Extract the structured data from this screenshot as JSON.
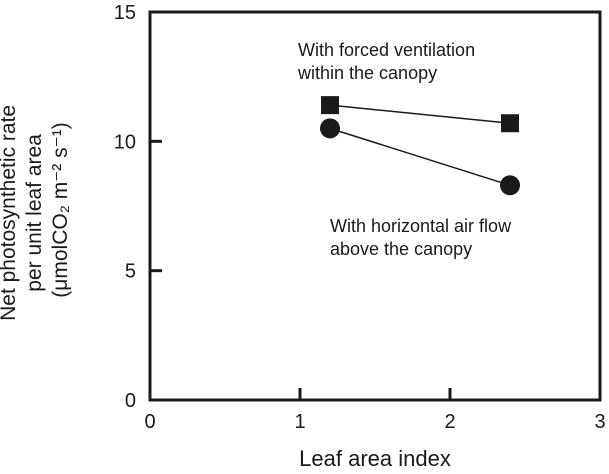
{
  "chart_data": {
    "type": "line",
    "xlabel": "Leaf area index",
    "ylabel_lines": [
      "Net photosynthetic rate",
      "per unit leaf area",
      "(μmolCO₂ m⁻² s⁻¹)"
    ],
    "xlim": [
      0,
      3
    ],
    "ylim": [
      0,
      15
    ],
    "xticks": [
      "0",
      "1",
      "2",
      "3"
    ],
    "yticks": [
      "0",
      "5",
      "10",
      "15"
    ],
    "grid": false,
    "series": [
      {
        "marker": "square",
        "label_lines": [
          "With forced ventilation",
          "within the canopy"
        ],
        "points": [
          {
            "x": 1.2,
            "y": 11.4
          },
          {
            "x": 2.4,
            "y": 10.7
          }
        ]
      },
      {
        "marker": "circle",
        "label_lines": [
          "With horizontal air flow",
          "above the canopy"
        ],
        "points": [
          {
            "x": 1.2,
            "y": 10.5
          },
          {
            "x": 2.4,
            "y": 8.3
          }
        ]
      }
    ],
    "colors": {
      "ink": "#1a1a1a",
      "background": "#ffffff"
    }
  }
}
